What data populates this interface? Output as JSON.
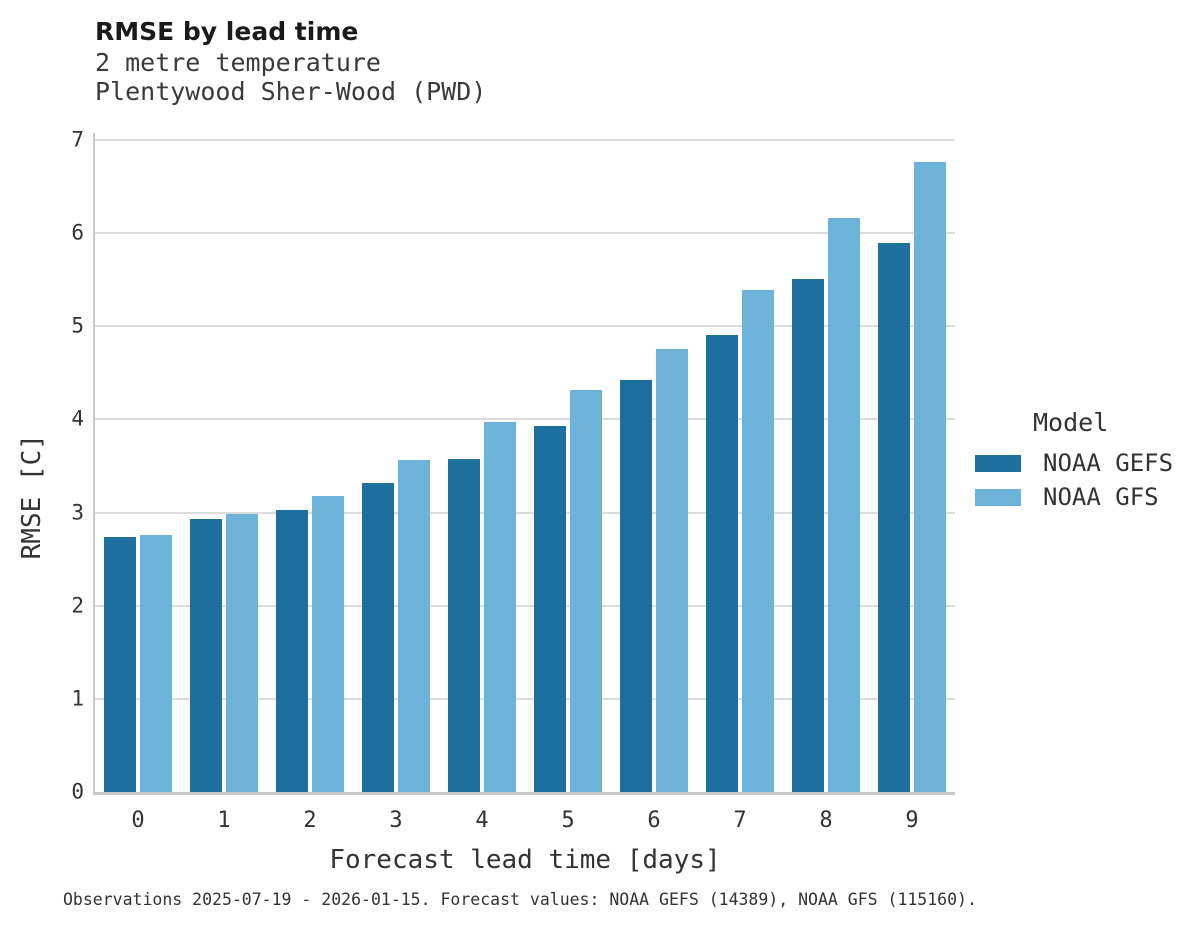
{
  "chart_data": {
    "type": "bar",
    "title": "RMSE by lead time",
    "subtitle": [
      "2 metre temperature",
      "Plentywood Sher-Wood (PWD)"
    ],
    "categories": [
      "0",
      "1",
      "2",
      "3",
      "4",
      "5",
      "6",
      "7",
      "8",
      "9"
    ],
    "series": [
      {
        "name": "NOAA GEFS",
        "color": "#1d6f9e",
        "values": [
          2.74,
          2.93,
          3.03,
          3.32,
          3.58,
          3.93,
          4.42,
          4.91,
          5.51,
          5.89
        ]
      },
      {
        "name": "NOAA GFS",
        "color": "#6db3d9",
        "values": [
          2.76,
          2.99,
          3.18,
          3.56,
          3.97,
          4.32,
          4.76,
          5.39,
          6.16,
          6.76
        ]
      }
    ],
    "xlabel": "Forecast lead time [days]",
    "ylabel": "RMSE [C]",
    "ylim": [
      0,
      7
    ],
    "yticks": [
      0,
      1,
      2,
      3,
      4,
      5,
      6,
      7
    ],
    "grid": true,
    "legend": {
      "title": "Model",
      "position": "right"
    },
    "caption": "Observations 2025-07-19 - 2026-01-15. Forecast values: NOAA GEFS (14389), NOAA GFS (115160)."
  }
}
